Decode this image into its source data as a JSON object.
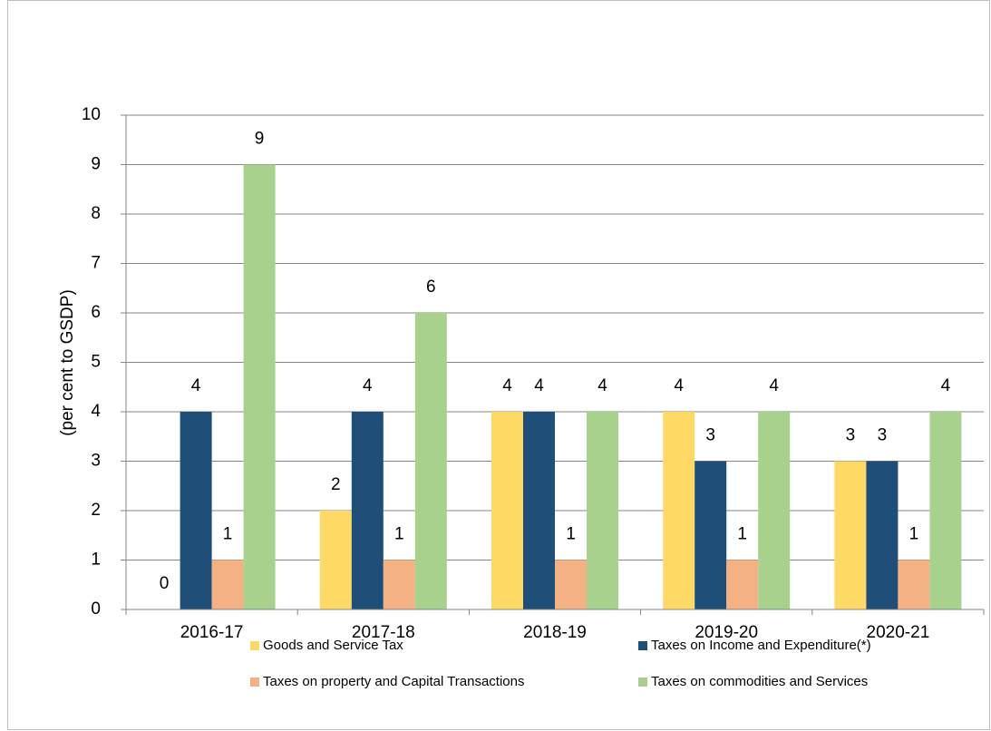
{
  "chart_data": {
    "type": "bar",
    "y_label": "(per cent to GSDP)",
    "categories": [
      "2016-17",
      "2017-18",
      "2018-19",
      "2019-20",
      "2020-21"
    ],
    "series": [
      {
        "name": "Goods and Service Tax",
        "color": "#ffd966",
        "values": [
          0,
          2,
          4,
          4,
          3
        ]
      },
      {
        "name": "Taxes on Income and Expenditure(*)",
        "color": "#1f4e79",
        "values": [
          4,
          4,
          4,
          3,
          3
        ]
      },
      {
        "name": "Taxes on property and Capital Transactions",
        "color": "#f4b183",
        "values": [
          1,
          1,
          1,
          1,
          1
        ]
      },
      {
        "name": "Taxes on commodities and Services",
        "color": "#a9d18e",
        "values": [
          9,
          6,
          4,
          4,
          4
        ]
      }
    ],
    "ylim": [
      0,
      10
    ],
    "yticks": [
      0,
      1,
      2,
      3,
      4,
      5,
      6,
      7,
      8,
      9,
      10
    ],
    "grid": true
  }
}
